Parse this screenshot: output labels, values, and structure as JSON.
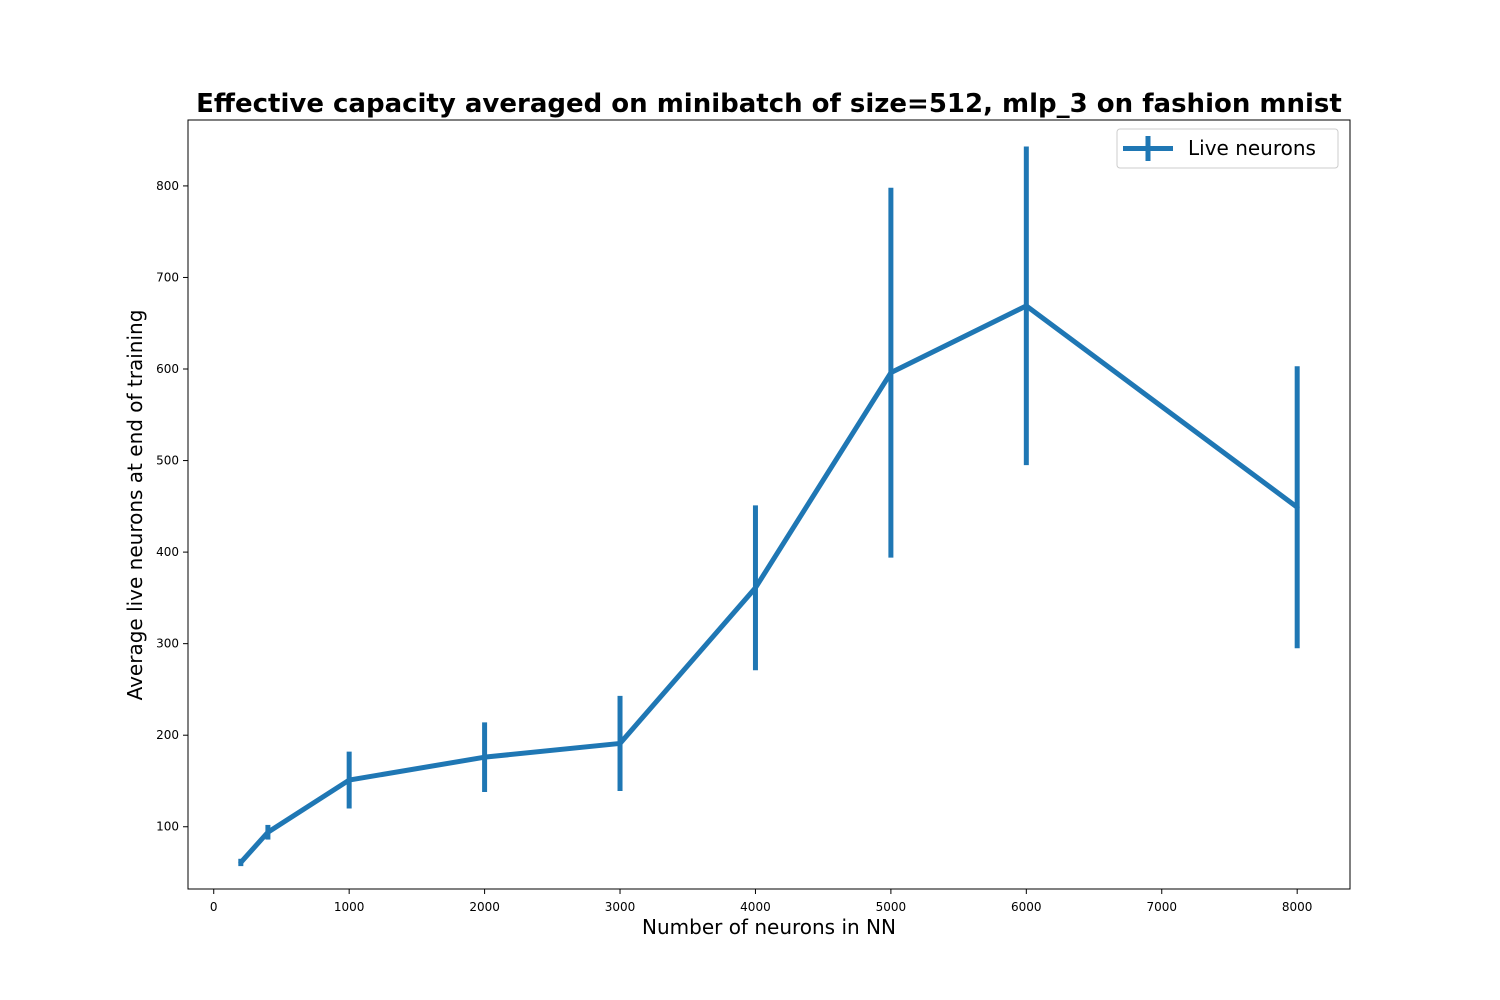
{
  "chart_data": {
    "type": "line",
    "title": "Effective capacity averaged on minibatch of size=512, mlp_3 on fashion mnist",
    "xlabel": "Number of neurons in NN",
    "ylabel": "Average live neurons at end of training",
    "xlim": [
      -190,
      8390
    ],
    "ylim": [
      32,
      872
    ],
    "xticks": [
      0,
      1000,
      2000,
      3000,
      4000,
      5000,
      6000,
      7000,
      8000
    ],
    "yticks": [
      100,
      200,
      300,
      400,
      500,
      600,
      700,
      800
    ],
    "grid": false,
    "legend_position": "top-right",
    "series": [
      {
        "name": "Live neurons",
        "color": "#1f77b4",
        "error_bars": true,
        "points": [
          {
            "x": 200,
            "y": 61,
            "err": 4
          },
          {
            "x": 400,
            "y": 94,
            "err": 8
          },
          {
            "x": 1000,
            "y": 151,
            "err": 31
          },
          {
            "x": 2000,
            "y": 176,
            "err": 38
          },
          {
            "x": 3000,
            "y": 191,
            "err": 52
          },
          {
            "x": 4000,
            "y": 361,
            "err": 90
          },
          {
            "x": 5000,
            "y": 596,
            "err": 202
          },
          {
            "x": 6000,
            "y": 669,
            "err": 174
          },
          {
            "x": 8000,
            "y": 449,
            "err": 154
          }
        ]
      }
    ]
  }
}
